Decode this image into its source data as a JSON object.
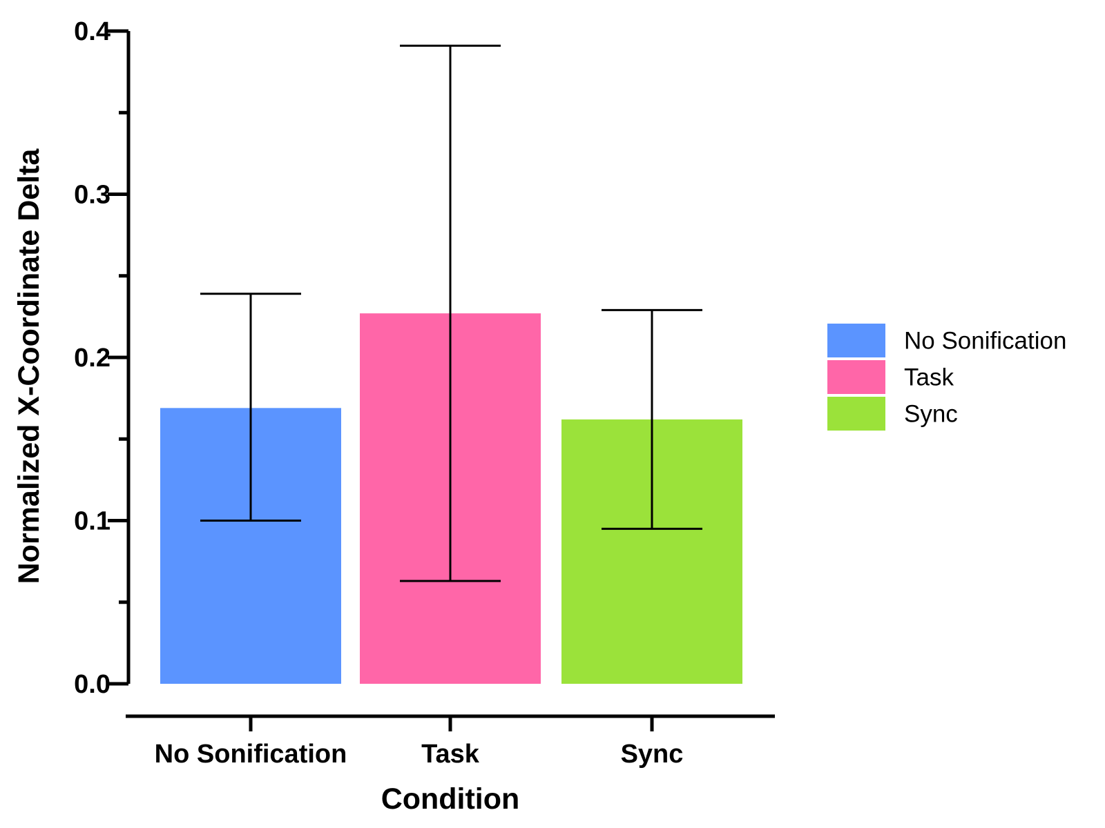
{
  "chart_data": {
    "type": "bar",
    "xlabel": "Condition",
    "ylabel": "Normalized X-Coordinate Delta",
    "ylim": [
      0,
      0.4
    ],
    "yticks": [
      "0.0",
      "0.1",
      "0.2",
      "0.3",
      "0.4"
    ],
    "grid": false,
    "legend_position": "right",
    "categories": [
      "No Sonification",
      "Task",
      "Sync"
    ],
    "values": [
      0.169,
      0.227,
      0.162
    ],
    "error_low": [
      0.1,
      0.063,
      0.095
    ],
    "error_high": [
      0.239,
      0.391,
      0.229
    ],
    "colors": [
      "#5b94ff",
      "#ff66a8",
      "#9be23a"
    ],
    "legend": [
      "No Sonification",
      "Task",
      "Sync"
    ]
  }
}
